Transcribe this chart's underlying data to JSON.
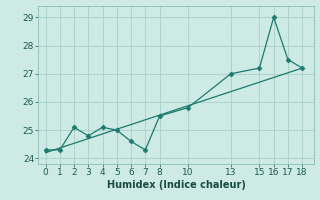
{
  "xlabel": "Humidex (Indice chaleur)",
  "data_x": [
    0,
    1,
    2,
    3,
    4,
    5,
    6,
    7,
    8,
    10,
    13,
    15,
    16,
    17,
    18
  ],
  "data_y": [
    24.3,
    24.3,
    25.1,
    24.8,
    25.1,
    25.0,
    24.6,
    24.3,
    25.5,
    25.8,
    27.0,
    27.2,
    29.0,
    27.5,
    27.2
  ],
  "trend_x": [
    0,
    18
  ],
  "trend_y": [
    24.2,
    27.2
  ],
  "line_color": "#1a7a6e",
  "bg_color": "#ceeae4",
  "grid_color": "#aacfc8",
  "ylim": [
    23.8,
    29.4
  ],
  "xlim": [
    -0.5,
    18.8
  ],
  "yticks": [
    24,
    25,
    26,
    27,
    28,
    29
  ],
  "xticks": [
    0,
    1,
    2,
    3,
    4,
    5,
    6,
    7,
    8,
    10,
    13,
    15,
    16,
    17,
    18
  ],
  "xlabel_fontsize": 7,
  "tick_fontsize": 6.5
}
